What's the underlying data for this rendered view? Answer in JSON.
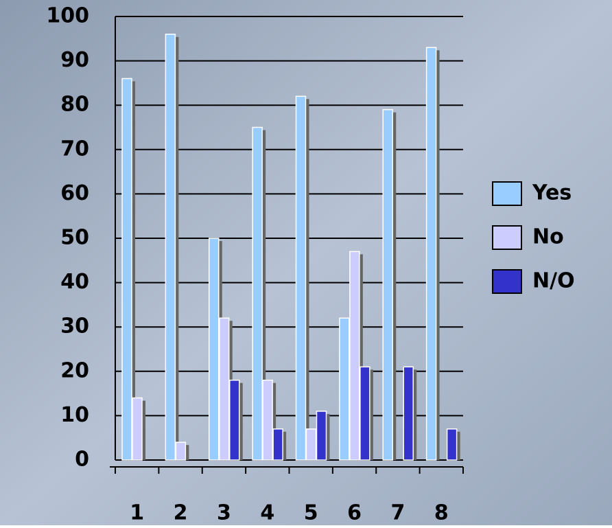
{
  "chart_data": {
    "type": "bar",
    "categories": [
      "1",
      "2",
      "3",
      "4",
      "5",
      "6",
      "7",
      "8"
    ],
    "series": [
      {
        "name": "Yes",
        "color": "#99ccff",
        "values": [
          86,
          96,
          50,
          75,
          82,
          32,
          79,
          93
        ]
      },
      {
        "name": "No",
        "color": "#ccccff",
        "values": [
          14,
          4,
          32,
          18,
          7,
          47,
          0,
          0
        ]
      },
      {
        "name": "N/O",
        "color": "#3333cc",
        "values": [
          0,
          0,
          18,
          7,
          11,
          21,
          21,
          7
        ]
      }
    ],
    "ylim": [
      0,
      100
    ],
    "yticks": [
      0,
      10,
      20,
      30,
      40,
      50,
      60,
      70,
      80,
      90,
      100
    ],
    "grid": true,
    "legend": "right"
  }
}
